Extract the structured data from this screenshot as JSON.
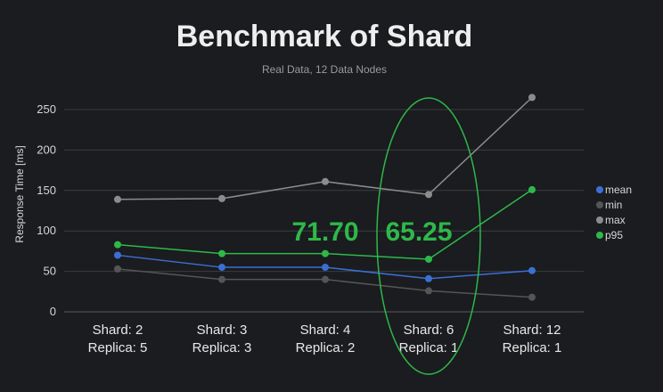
{
  "chart_data": {
    "type": "line",
    "title": "Benchmark of Shard",
    "subtitle": "Real Data, 12 Data Nodes",
    "xlabel": "",
    "ylabel": "Response Time [ms]",
    "ylim": [
      0,
      250
    ],
    "yticks": [
      0,
      50,
      100,
      150,
      200,
      250
    ],
    "categories": [
      [
        "Shard: 2",
        "Replica: 5"
      ],
      [
        "Shard: 3",
        "Replica: 3"
      ],
      [
        "Shard: 4",
        "Replica: 2"
      ],
      [
        "Shard: 6",
        "Replica: 1"
      ],
      [
        "Shard: 12",
        "Replica: 1"
      ]
    ],
    "series": [
      {
        "name": "mean",
        "color": "#3b6fd4",
        "values": [
          70,
          55,
          55,
          41,
          51
        ]
      },
      {
        "name": "min",
        "color": "#555555",
        "values": [
          53,
          40,
          40,
          26,
          18
        ]
      },
      {
        "name": "max",
        "color": "#8c8c8c",
        "values": [
          139,
          140,
          161,
          145,
          265
        ]
      },
      {
        "name": "p95",
        "color": "#2fb84a",
        "values": [
          83,
          72,
          72,
          65,
          151
        ]
      }
    ],
    "grid": true,
    "legend": "right",
    "annotations": [
      {
        "text": "71.70",
        "category_index": 2,
        "color": "#2fb84a"
      },
      {
        "text": "65.25",
        "category_index": 3,
        "color": "#2fb84a"
      }
    ],
    "highlight": {
      "category_index": 3,
      "shape": "ellipse",
      "color": "#2fb84a"
    }
  }
}
